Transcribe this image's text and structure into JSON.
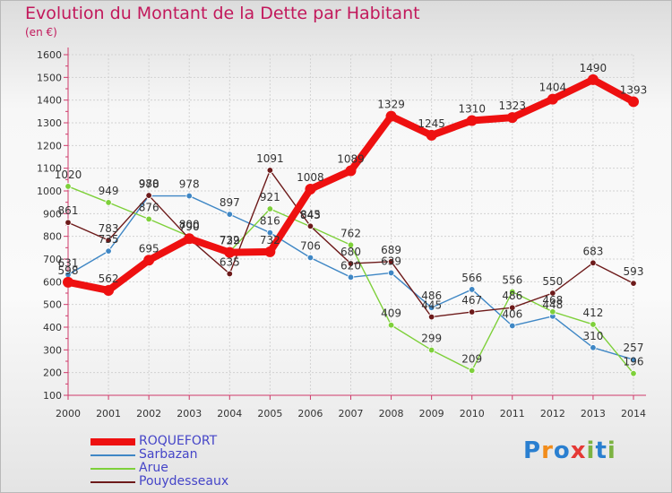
{
  "title": "Evolution du Montant de la Dette par Habitant",
  "unit": "(en €)",
  "logo_text": "Proxiti",
  "logo_colors": [
    "#2a7fd0",
    "#f28c1a",
    "#2a7fd0",
    "#e53935",
    "#7cb342",
    "#2a7fd0",
    "#7cb342"
  ],
  "chart_data": {
    "type": "line",
    "x": [
      2000,
      2001,
      2002,
      2003,
      2004,
      2005,
      2006,
      2007,
      2008,
      2009,
      2010,
      2011,
      2012,
      2013,
      2014
    ],
    "ylim": [
      100,
      1600
    ],
    "yticks": [
      100,
      200,
      300,
      400,
      500,
      600,
      700,
      800,
      900,
      1000,
      1100,
      1200,
      1300,
      1400,
      1500,
      1600
    ],
    "grid": true,
    "legend_position": "bottom-left",
    "series": [
      {
        "name": "ROQUEFORT",
        "color": "#ee1010",
        "values": [
          598,
          562,
          695,
          790,
          729,
          732,
          1008,
          1089,
          1329,
          1245,
          1310,
          1323,
          1404,
          1490,
          1393
        ]
      },
      {
        "name": "Sarbazan",
        "color": "#3f87c5",
        "values": [
          631,
          735,
          978,
          978,
          897,
          816,
          706,
          620,
          639,
          486,
          566,
          406,
          448,
          310,
          257
        ]
      },
      {
        "name": "Arue",
        "color": "#7ed03a",
        "values": [
          1020,
          949,
          876,
          800,
          732,
          921,
          843,
          762,
          409,
          299,
          209,
          556,
          468,
          412,
          196
        ]
      },
      {
        "name": "Pouydesseaux",
        "color": "#6d1a1a",
        "values": [
          861,
          783,
          980,
          790,
          635,
          1091,
          845,
          680,
          689,
          445,
          467,
          486,
          550,
          683,
          593
        ]
      }
    ]
  }
}
